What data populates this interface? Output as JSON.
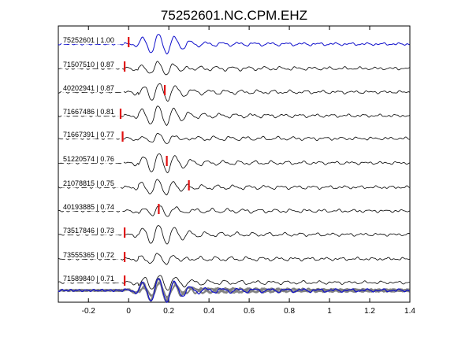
{
  "chart_data": {
    "type": "line",
    "title": "75252601.NC.CPM.EHZ",
    "xlabel": "",
    "ylabel": "",
    "xlim": [
      -0.35,
      1.4
    ],
    "xticks": [
      -0.2,
      0,
      0.2,
      0.4,
      0.6,
      0.8,
      1,
      1.2,
      1.4
    ],
    "xtick_labels": [
      "-0.2",
      "0",
      "0.2",
      "0.4",
      "0.6",
      "0.8",
      "1",
      "1.2",
      "1.4"
    ],
    "grid": false,
    "colors": {
      "reference": "#1010cc",
      "trace": "#000000",
      "pick": "#e01010",
      "stack": "#808080"
    },
    "series": [
      {
        "label": "75252601 | 1.00",
        "role": "reference",
        "pick": 0.0
      },
      {
        "label": "71507510 | 0.87",
        "role": "trace",
        "pick": -0.02
      },
      {
        "label": "40202941 | 0.87",
        "role": "trace",
        "pick": 0.18
      },
      {
        "label": "71667486 | 0.81",
        "role": "trace",
        "pick": -0.04
      },
      {
        "label": "71667391 | 0.77",
        "role": "trace",
        "pick": -0.03
      },
      {
        "label": "51220574 | 0.76",
        "role": "trace",
        "pick": 0.19
      },
      {
        "label": "21078815 | 0.75",
        "role": "trace",
        "pick": 0.3
      },
      {
        "label": "40193885 | 0.74",
        "role": "trace",
        "pick": 0.15
      },
      {
        "label": "73517846 | 0.73",
        "role": "trace",
        "pick": -0.02
      },
      {
        "label": "73555365 | 0.72",
        "role": "trace",
        "pick": -0.02
      },
      {
        "label": "71589840 | 0.71",
        "role": "trace",
        "pick": -0.02
      }
    ]
  }
}
